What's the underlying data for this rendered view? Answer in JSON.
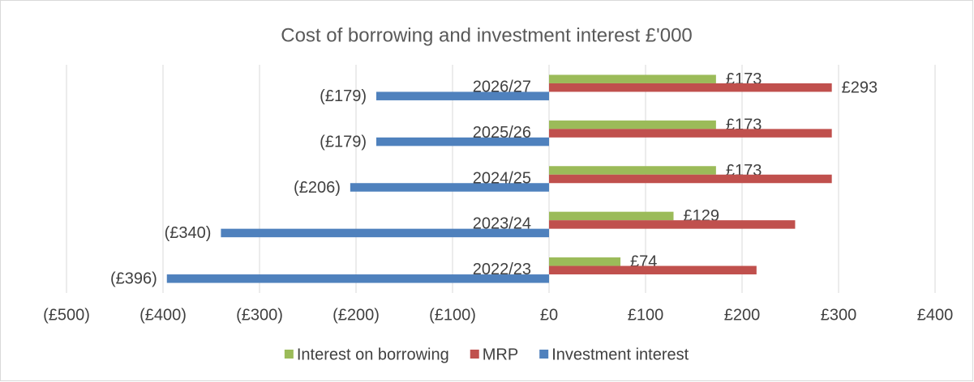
{
  "chart_data": {
    "type": "bar",
    "orientation": "horizontal",
    "title": "Cost of borrowing and investment interest £'000",
    "categories": [
      "2022/23",
      "2023/24",
      "2024/25",
      "2025/26",
      "2026/27"
    ],
    "series": [
      {
        "name": "Interest on borrowing",
        "color": "#9bbb59",
        "values": [
          74,
          129,
          173,
          173,
          173
        ],
        "value_labels": [
          "£74",
          "£129",
          "£173",
          "£173",
          "£173"
        ]
      },
      {
        "name": "MRP",
        "color": "#c0504d",
        "values": [
          215,
          255,
          293,
          293,
          293
        ],
        "value_labels": [
          null,
          null,
          null,
          null,
          "£293"
        ]
      },
      {
        "name": "Investment interest",
        "color": "#4f81bd",
        "values": [
          -396,
          -340,
          -206,
          -179,
          -179
        ],
        "value_labels": [
          "(£396)",
          "(£340)",
          "(£206)",
          "(£179)",
          "(£179)"
        ]
      }
    ],
    "xlim": [
      -500,
      400
    ],
    "xticks": [
      {
        "value": -500,
        "label": "(£500)"
      },
      {
        "value": -400,
        "label": "(£400)"
      },
      {
        "value": -300,
        "label": "(£300)"
      },
      {
        "value": -200,
        "label": "(£200)"
      },
      {
        "value": -100,
        "label": "(£100)"
      },
      {
        "value": 0,
        "label": "£0"
      },
      {
        "value": 100,
        "label": "£100"
      },
      {
        "value": 200,
        "label": "£200"
      },
      {
        "value": 300,
        "label": "£300"
      },
      {
        "value": 400,
        "label": "£400"
      }
    ],
    "grid": true,
    "legend": "bottom"
  }
}
